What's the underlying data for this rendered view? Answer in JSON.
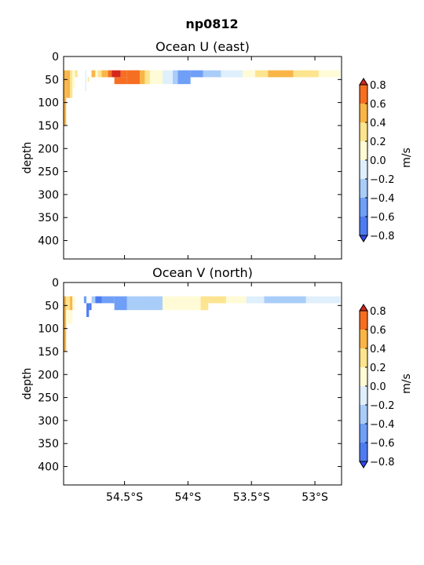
{
  "figure": {
    "suptitle": "np0812"
  },
  "colors": {
    "levels": [
      -0.8,
      -0.6,
      -0.4,
      -0.2,
      0.0,
      0.2,
      0.4,
      0.6,
      0.8
    ],
    "bands": [
      "#2e48f0",
      "#4e7cf0",
      "#6f9ff7",
      "#a9cdf9",
      "#dfeffb",
      "#fefbd6",
      "#fde48f",
      "#f9b548",
      "#f66e22",
      "#d4261a"
    ]
  },
  "chart_data": [
    {
      "type": "heatmap",
      "title": "Ocean U (east)",
      "ylabel": "depth",
      "colorbar_label": "m/s",
      "colorbar_ticks": [
        "0.8",
        "0.6",
        "0.4",
        "0.2",
        "0.0",
        "−0.2",
        "−0.4",
        "−0.6",
        "−0.8"
      ],
      "xlim": [
        -54.98,
        -52.79
      ],
      "ylim": [
        440,
        0
      ],
      "x_ticks": [
        {
          "value": -54.5,
          "label": "54.5°S"
        },
        {
          "value": -54.0,
          "label": "54°S"
        },
        {
          "value": -53.5,
          "label": "53.5°S"
        },
        {
          "value": -53.0,
          "label": "53°S"
        }
      ],
      "y_ticks": [
        0,
        50,
        100,
        150,
        200,
        250,
        300,
        350,
        400
      ],
      "cells": [
        {
          "x0": -54.98,
          "x1": -54.96,
          "y0": 30,
          "y1": 150,
          "v": 0.5
        },
        {
          "x0": -54.96,
          "x1": -54.93,
          "y0": 30,
          "y1": 90,
          "v": 0.5
        },
        {
          "x0": -54.93,
          "x1": -54.91,
          "y0": 30,
          "y1": 90,
          "v": 0.3
        },
        {
          "x0": -54.91,
          "x1": -54.89,
          "y0": 30,
          "y1": 70,
          "v": 0.1
        },
        {
          "x0": -54.89,
          "x1": -54.87,
          "y0": 30,
          "y1": 45,
          "v": 0.3
        },
        {
          "x0": -54.81,
          "x1": -54.8,
          "y0": 30,
          "y1": 75,
          "v": -0.1
        },
        {
          "x0": -54.79,
          "x1": -54.78,
          "y0": 45,
          "y1": 55,
          "v": 0.3
        },
        {
          "x0": -54.76,
          "x1": -54.73,
          "y0": 30,
          "y1": 45,
          "v": 0.5
        },
        {
          "x0": -54.73,
          "x1": -54.71,
          "y0": 30,
          "y1": 45,
          "v": 0.1
        },
        {
          "x0": -54.71,
          "x1": -54.68,
          "y0": 30,
          "y1": 45,
          "v": 0.3
        },
        {
          "x0": -54.68,
          "x1": -54.63,
          "y0": 30,
          "y1": 45,
          "v": 0.5
        },
        {
          "x0": -54.63,
          "x1": -54.6,
          "y0": 30,
          "y1": 45,
          "v": 0.7
        },
        {
          "x0": -54.6,
          "x1": -54.53,
          "y0": 30,
          "y1": 45,
          "v": 0.9
        },
        {
          "x0": -54.58,
          "x1": -54.48,
          "y0": 45,
          "y1": 60,
          "v": 0.7
        },
        {
          "x0": -54.53,
          "x1": -54.48,
          "y0": 30,
          "y1": 45,
          "v": 0.7
        },
        {
          "x0": -54.48,
          "x1": -54.38,
          "y0": 30,
          "y1": 60,
          "v": 0.7
        },
        {
          "x0": -54.38,
          "x1": -54.34,
          "y0": 30,
          "y1": 60,
          "v": 0.5
        },
        {
          "x0": -54.34,
          "x1": -54.3,
          "y0": 30,
          "y1": 60,
          "v": 0.3
        },
        {
          "x0": -54.3,
          "x1": -54.2,
          "y0": 30,
          "y1": 60,
          "v": 0.1
        },
        {
          "x0": -54.2,
          "x1": -54.12,
          "y0": 30,
          "y1": 60,
          "v": -0.1
        },
        {
          "x0": -54.12,
          "x1": -54.08,
          "y0": 30,
          "y1": 60,
          "v": -0.3
        },
        {
          "x0": -54.08,
          "x1": -53.98,
          "y0": 30,
          "y1": 60,
          "v": -0.5
        },
        {
          "x0": -53.98,
          "x1": -53.88,
          "y0": 30,
          "y1": 45,
          "v": -0.5
        },
        {
          "x0": -53.88,
          "x1": -53.74,
          "y0": 30,
          "y1": 45,
          "v": -0.3
        },
        {
          "x0": -53.74,
          "x1": -53.57,
          "y0": 30,
          "y1": 45,
          "v": -0.1
        },
        {
          "x0": -53.57,
          "x1": -53.47,
          "y0": 30,
          "y1": 45,
          "v": 0.1
        },
        {
          "x0": -53.47,
          "x1": -53.37,
          "y0": 30,
          "y1": 45,
          "v": 0.3
        },
        {
          "x0": -53.37,
          "x1": -53.17,
          "y0": 30,
          "y1": 45,
          "v": 0.5
        },
        {
          "x0": -53.17,
          "x1": -52.97,
          "y0": 30,
          "y1": 45,
          "v": 0.3
        },
        {
          "x0": -52.97,
          "x1": -52.8,
          "y0": 30,
          "y1": 45,
          "v": 0.1
        }
      ]
    },
    {
      "type": "heatmap",
      "title": "Ocean V (north)",
      "ylabel": "depth",
      "colorbar_label": "m/s",
      "colorbar_ticks": [
        "0.8",
        "0.6",
        "0.4",
        "0.2",
        "0.0",
        "−0.2",
        "−0.4",
        "−0.6",
        "−0.8"
      ],
      "xlim": [
        -54.98,
        -52.79
      ],
      "ylim": [
        440,
        0
      ],
      "x_ticks": [
        {
          "value": -54.5,
          "label": "54.5°S"
        },
        {
          "value": -54.0,
          "label": "54°S"
        },
        {
          "value": -53.5,
          "label": "53.5°S"
        },
        {
          "value": -53.0,
          "label": "53°S"
        }
      ],
      "y_ticks": [
        0,
        50,
        100,
        150,
        200,
        250,
        300,
        350,
        400
      ],
      "cells": [
        {
          "x0": -54.98,
          "x1": -54.96,
          "y0": 30,
          "y1": 150,
          "v": 0.5
        },
        {
          "x0": -54.96,
          "x1": -54.93,
          "y0": 30,
          "y1": 60,
          "v": 0.3
        },
        {
          "x0": -54.96,
          "x1": -54.91,
          "y0": 60,
          "y1": 90,
          "v": 0.1
        },
        {
          "x0": -54.93,
          "x1": -54.91,
          "y0": 30,
          "y1": 60,
          "v": 0.5
        },
        {
          "x0": -54.91,
          "x1": -54.89,
          "y0": 30,
          "y1": 60,
          "v": 0.1
        },
        {
          "x0": -54.82,
          "x1": -54.8,
          "y0": 30,
          "y1": 45,
          "v": -0.5
        },
        {
          "x0": -54.8,
          "x1": -54.78,
          "y0": 45,
          "y1": 75,
          "v": -0.7
        },
        {
          "x0": -54.78,
          "x1": -54.76,
          "y0": 45,
          "y1": 60,
          "v": -0.7
        },
        {
          "x0": -54.76,
          "x1": -54.73,
          "y0": 30,
          "y1": 45,
          "v": -0.3
        },
        {
          "x0": -54.73,
          "x1": -54.68,
          "y0": 30,
          "y1": 45,
          "v": -0.7
        },
        {
          "x0": -54.68,
          "x1": -54.58,
          "y0": 30,
          "y1": 45,
          "v": -0.5
        },
        {
          "x0": -54.58,
          "x1": -54.48,
          "y0": 30,
          "y1": 60,
          "v": -0.5
        },
        {
          "x0": -54.48,
          "x1": -54.38,
          "y0": 30,
          "y1": 60,
          "v": -0.3
        },
        {
          "x0": -54.38,
          "x1": -54.2,
          "y0": 30,
          "y1": 60,
          "v": -0.3
        },
        {
          "x0": -54.2,
          "x1": -54.0,
          "y0": 30,
          "y1": 60,
          "v": 0.1
        },
        {
          "x0": -54.0,
          "x1": -53.9,
          "y0": 30,
          "y1": 60,
          "v": 0.1
        },
        {
          "x0": -53.9,
          "x1": -53.84,
          "y0": 30,
          "y1": 60,
          "v": 0.3
        },
        {
          "x0": -53.84,
          "x1": -53.7,
          "y0": 30,
          "y1": 45,
          "v": 0.3
        },
        {
          "x0": -53.7,
          "x1": -53.54,
          "y0": 30,
          "y1": 45,
          "v": 0.1
        },
        {
          "x0": -53.54,
          "x1": -53.4,
          "y0": 30,
          "y1": 45,
          "v": -0.1
        },
        {
          "x0": -53.4,
          "x1": -53.07,
          "y0": 30,
          "y1": 45,
          "v": -0.3
        },
        {
          "x0": -53.07,
          "x1": -52.8,
          "y0": 30,
          "y1": 45,
          "v": -0.1
        }
      ]
    }
  ]
}
